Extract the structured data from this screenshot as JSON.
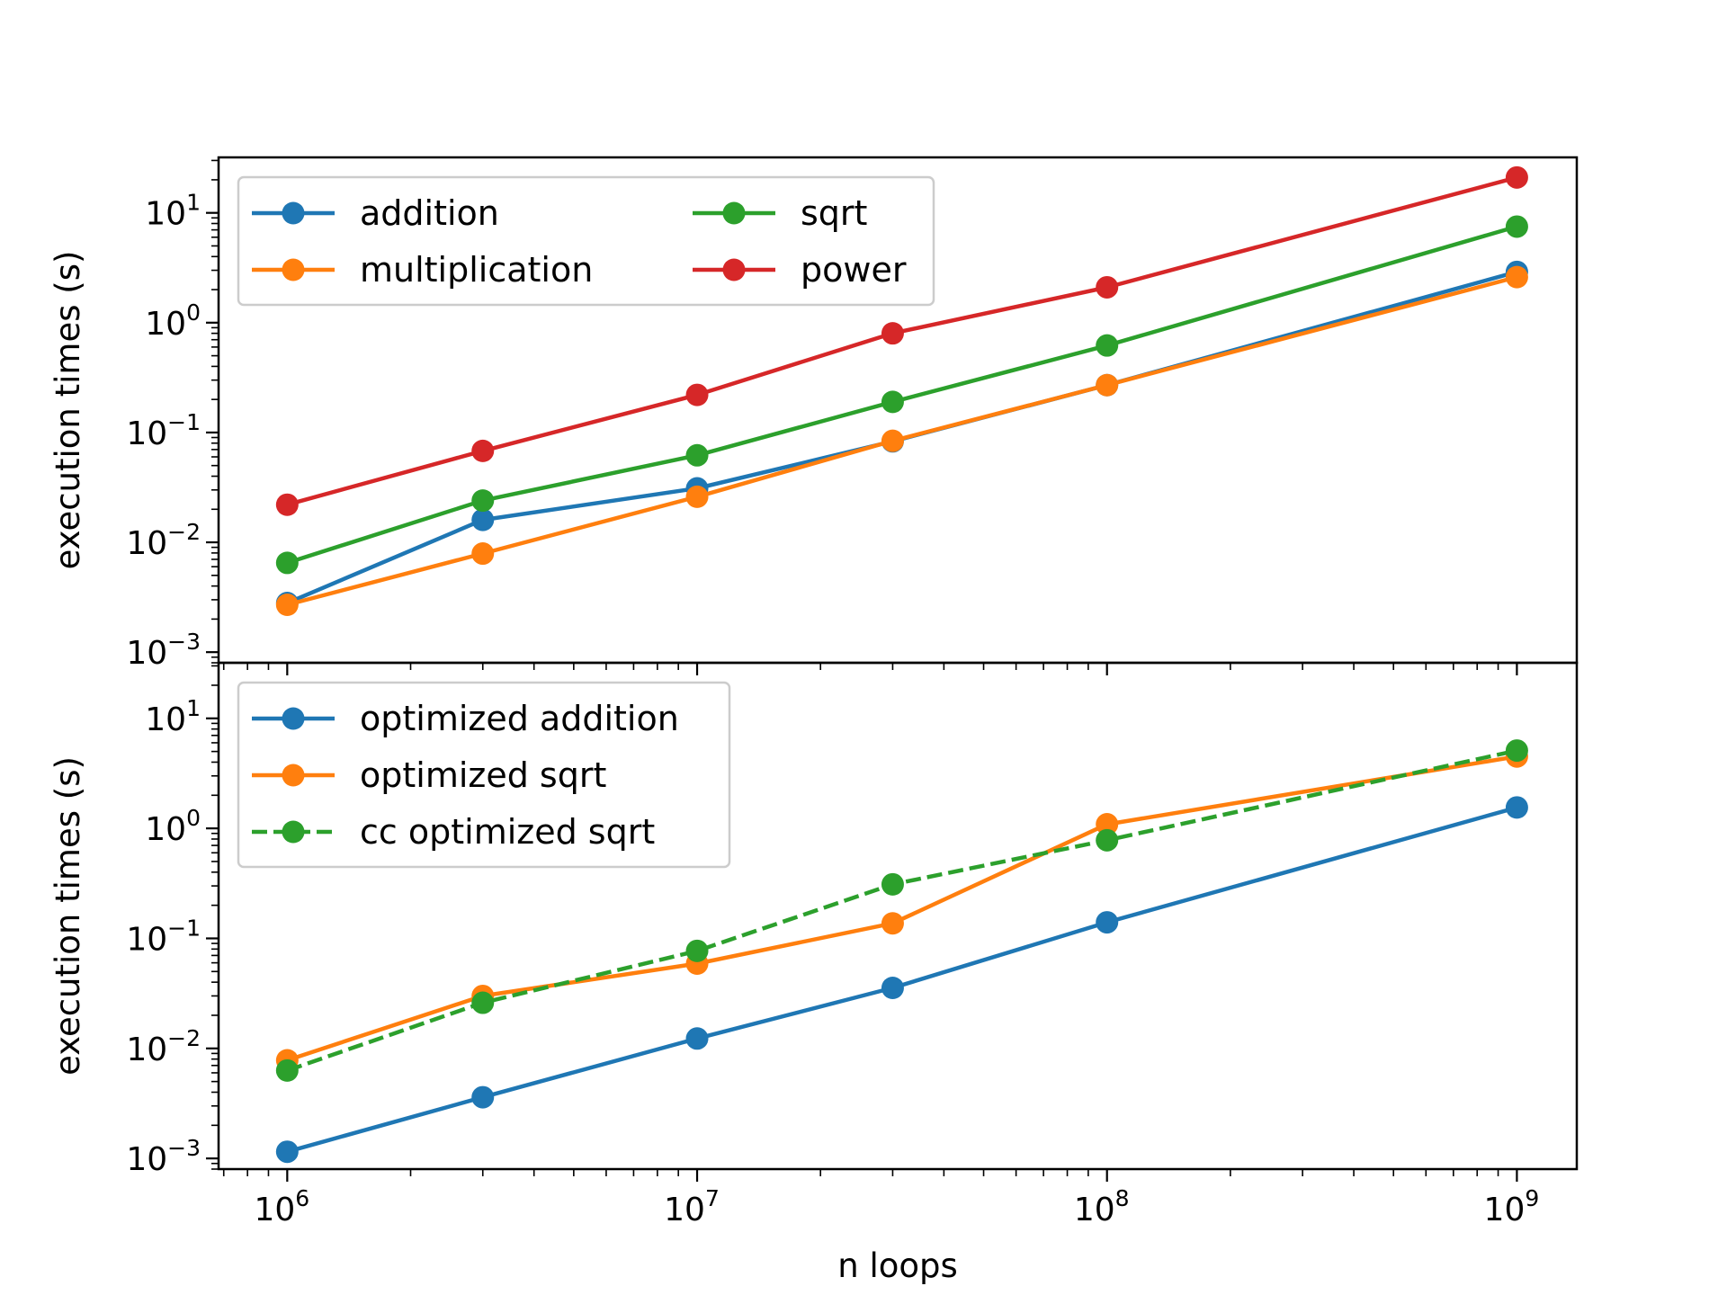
{
  "chart_data": {
    "type": "line",
    "xlabel": "n loops",
    "x_scale": "log",
    "y_scale": "log",
    "shared_x": true,
    "xlim": [
      680000,
      1400000000
    ],
    "x_ticks": [
      {
        "value": 1000000,
        "base": "10",
        "exp": "6"
      },
      {
        "value": 10000000,
        "base": "10",
        "exp": "7"
      },
      {
        "value": 100000000,
        "base": "10",
        "exp": "8"
      },
      {
        "value": 1000000000,
        "base": "10",
        "exp": "9"
      }
    ],
    "y_ticks": [
      {
        "value": 0.001,
        "base": "10",
        "exp": "−3"
      },
      {
        "value": 0.01,
        "base": "10",
        "exp": "−2"
      },
      {
        "value": 0.1,
        "base": "10",
        "exp": "−1"
      },
      {
        "value": 1,
        "base": "10",
        "exp": "0"
      },
      {
        "value": 10,
        "base": "10",
        "exp": "1"
      }
    ],
    "panels": [
      {
        "ylabel": "execution times (s)",
        "ylim": [
          0.0008,
          32
        ],
        "grid": false,
        "legend": {
          "placement": "upper-left",
          "columns": 2
        },
        "x": [
          1000000,
          3000000,
          10000000,
          30000000,
          100000000,
          1000000000
        ],
        "series": [
          {
            "name": "addition",
            "color": "#1f77b4",
            "dash": "solid",
            "values": [
              0.0028,
              0.016,
              0.031,
              0.083,
              0.27,
              2.9
            ]
          },
          {
            "name": "multiplication",
            "color": "#ff7f0e",
            "dash": "solid",
            "values": [
              0.0027,
              0.0079,
              0.026,
              0.084,
              0.27,
              2.6
            ]
          },
          {
            "name": "sqrt",
            "color": "#2ca02c",
            "dash": "solid",
            "values": [
              0.0065,
              0.024,
              0.062,
              0.19,
              0.62,
              7.5
            ]
          },
          {
            "name": "power",
            "color": "#d62728",
            "dash": "solid",
            "values": [
              0.022,
              0.068,
              0.22,
              0.8,
              2.1,
              21
            ]
          }
        ]
      },
      {
        "ylabel": "execution times (s)",
        "ylim": [
          0.0008,
          32
        ],
        "grid": false,
        "legend": {
          "placement": "upper-left",
          "columns": 1
        },
        "x": [
          1000000,
          3000000,
          10000000,
          30000000,
          100000000,
          1000000000
        ],
        "series": [
          {
            "name": "optimized addition",
            "color": "#1f77b4",
            "dash": "solid",
            "values": [
              0.00115,
              0.0036,
              0.0123,
              0.0355,
              0.14,
              1.55
            ]
          },
          {
            "name": "optimized sqrt",
            "color": "#ff7f0e",
            "dash": "solid",
            "values": [
              0.0078,
              0.03,
              0.059,
              0.137,
              1.09,
              4.5
            ]
          },
          {
            "name": "cc optimized sqrt",
            "color": "#2ca02c",
            "dash": "dashed",
            "values": [
              0.0063,
              0.026,
              0.077,
              0.31,
              0.78,
              5.1
            ]
          }
        ]
      }
    ]
  }
}
